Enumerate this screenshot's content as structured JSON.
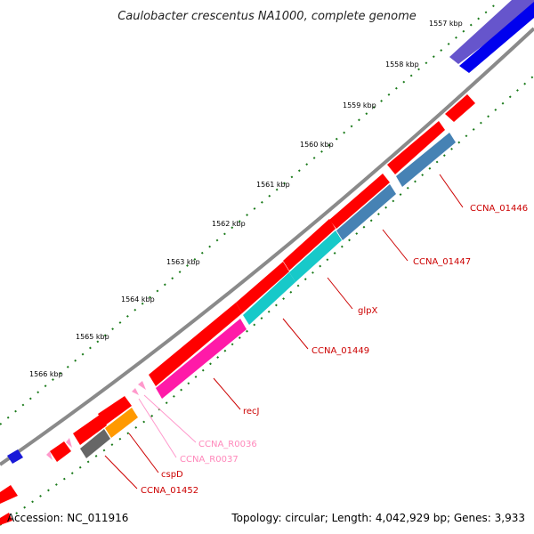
{
  "title": "Caulobacter crescentus NA1000, complete genome",
  "footer": {
    "accession": "Accession: NC_011916",
    "summary": "Topology: circular; Length: 4,042,929 bp; Genes: 3,933"
  },
  "colors": {
    "backbone": "#808080",
    "forward_cds": "#ff0000",
    "tick": "#1a7a1a",
    "rna": "#ff99cc"
  },
  "scale_labels": [
    "1557 kbp",
    "1558 kbp",
    "1559 kbp",
    "1560 kbp",
    "1561 kbp",
    "1562 kbp",
    "1563 kbp",
    "1564 kbp",
    "1565 kbp",
    "1566 kbp"
  ],
  "gene_labels": [
    {
      "text": "CCNA_01446",
      "color": "#cc0000"
    },
    {
      "text": "CCNA_01447",
      "color": "#cc0000"
    },
    {
      "text": "glpX",
      "color": "#cc0000"
    },
    {
      "text": "CCNA_01449",
      "color": "#cc0000"
    },
    {
      "text": "recJ",
      "color": "#cc0000"
    },
    {
      "text": "CCNA_R0036",
      "color": "#ff88bb"
    },
    {
      "text": "CCNA_R0037",
      "color": "#ff88bb"
    },
    {
      "text": "cspD",
      "color": "#cc0000"
    },
    {
      "text": "CCNA_01452",
      "color": "#cc0000"
    }
  ]
}
